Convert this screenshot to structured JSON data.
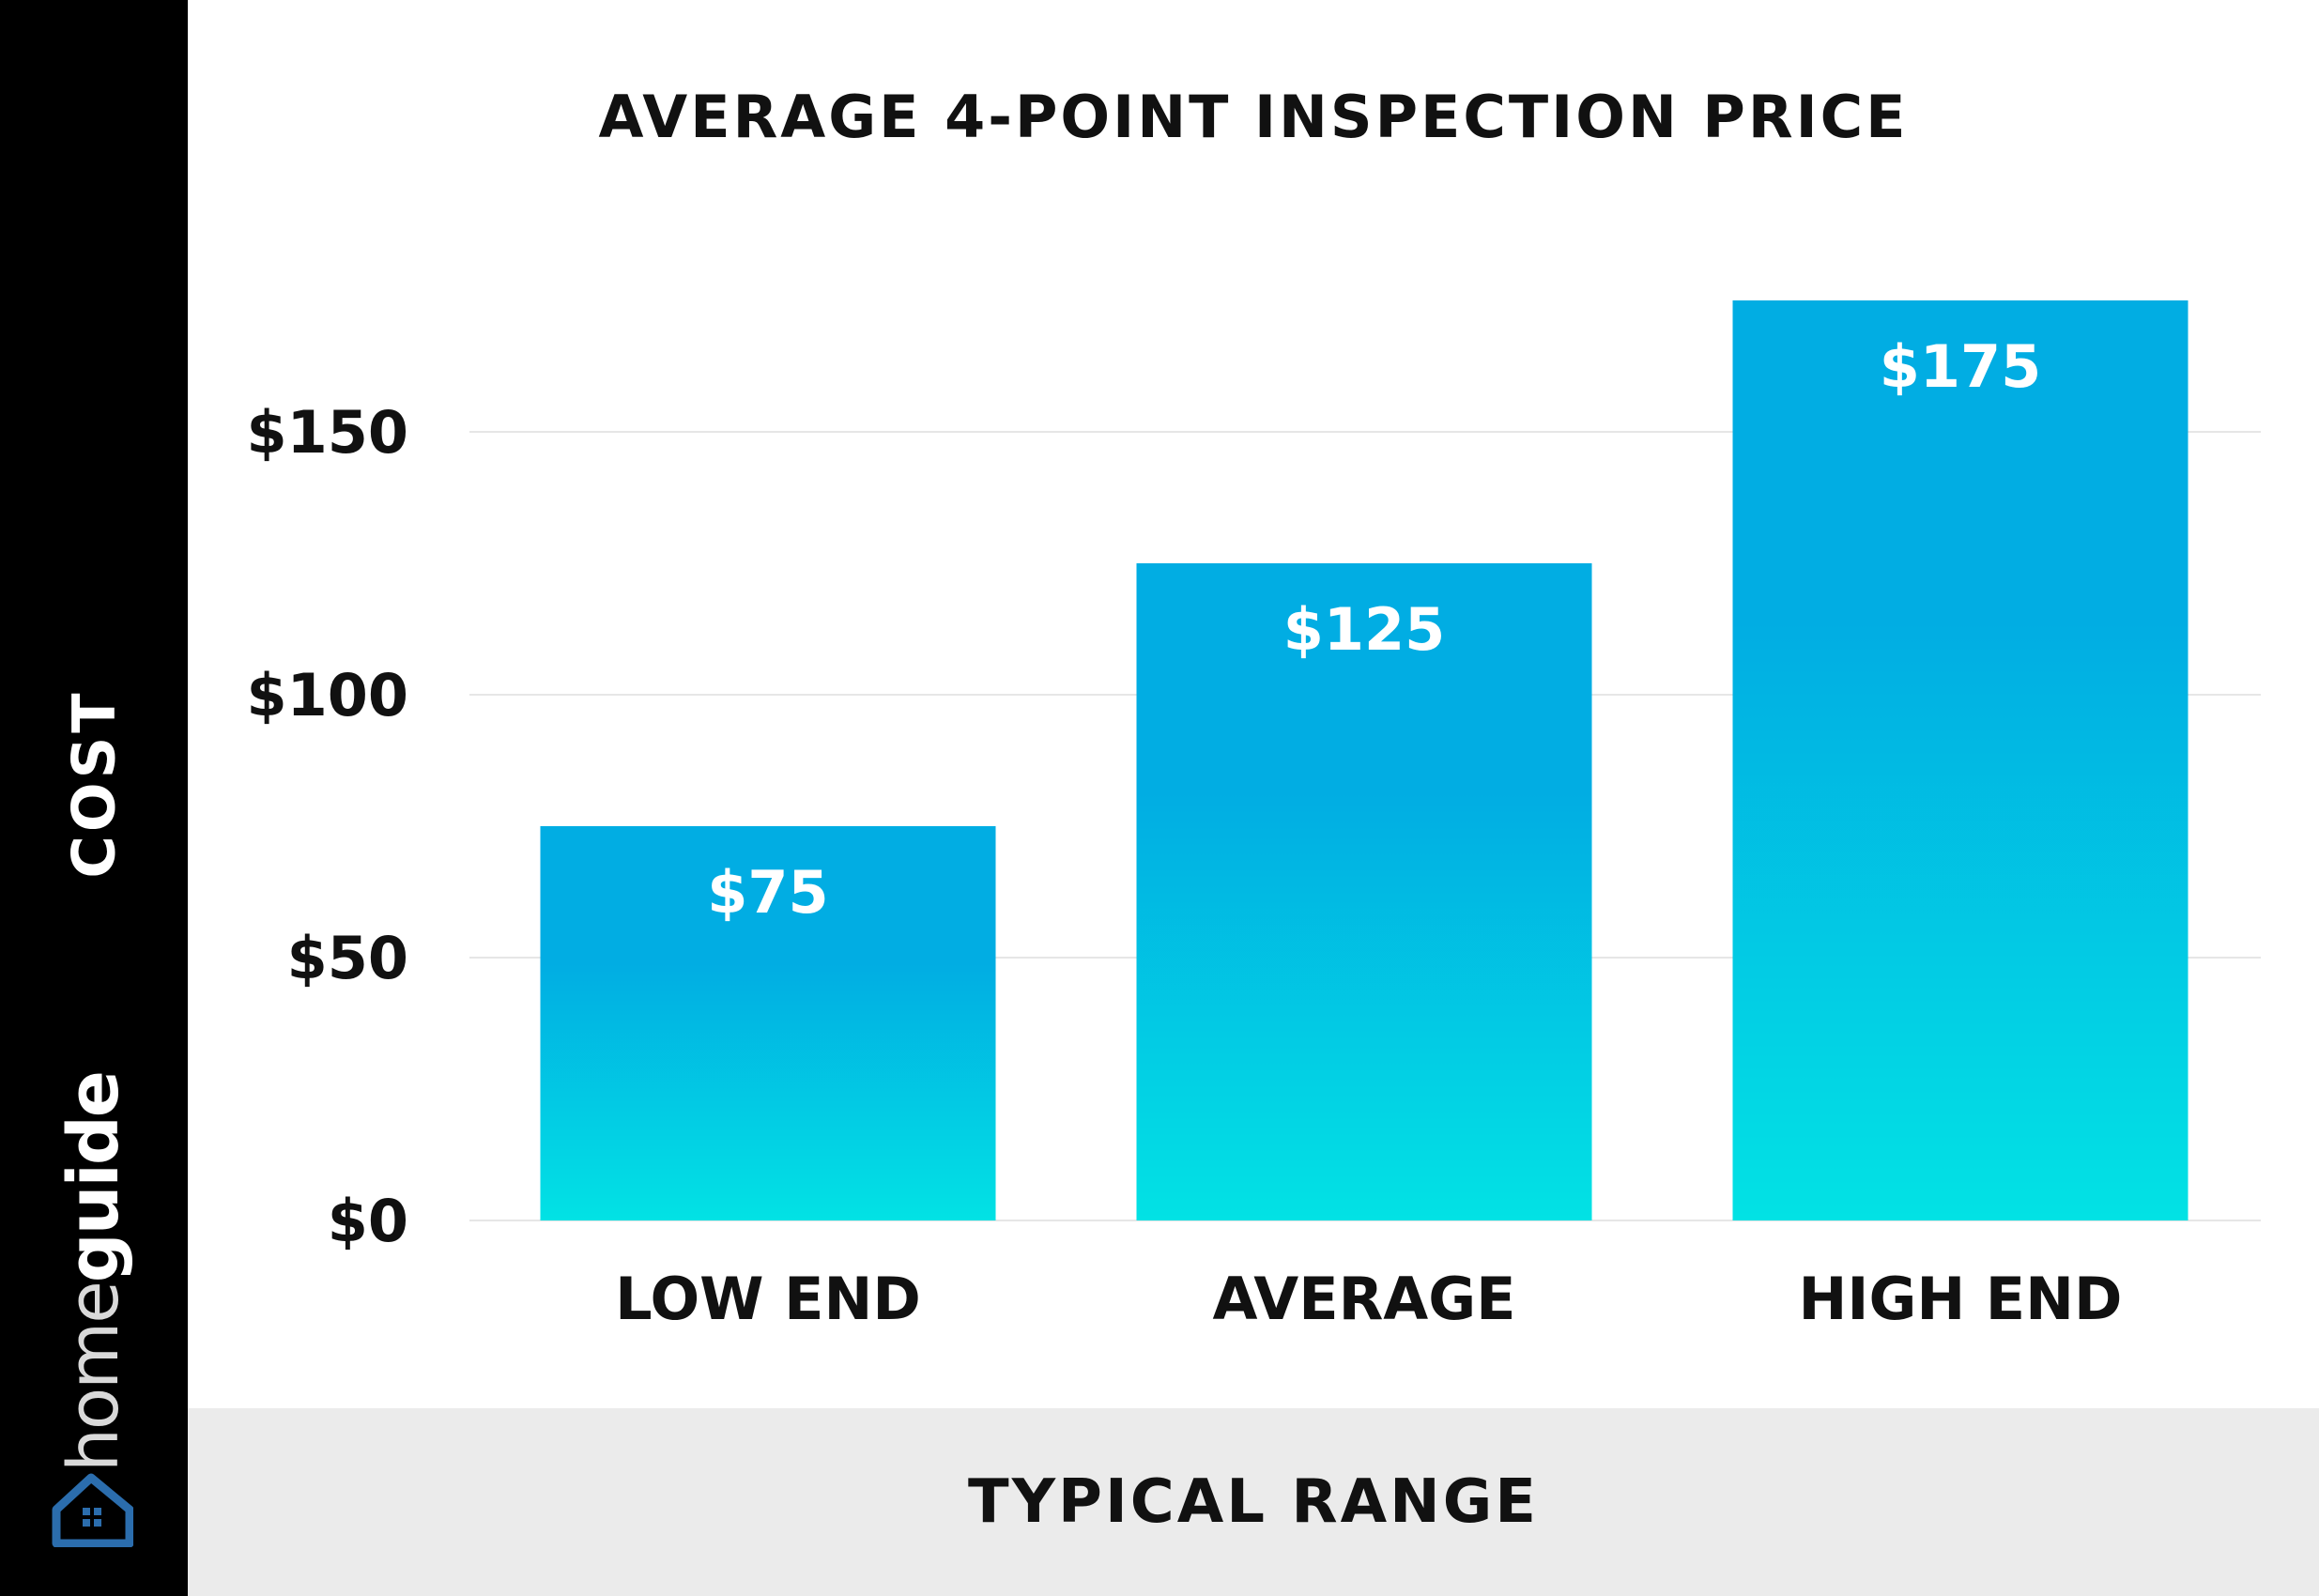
{
  "chart_data": {
    "type": "bar",
    "title": "AVERAGE 4-POINT INSPECTION PRICE",
    "xlabel": "TYPICAL RANGE",
    "ylabel": "COST",
    "categories": [
      "LOW END",
      "AVERAGE",
      "HIGH END"
    ],
    "values": [
      75,
      125,
      175
    ],
    "data_labels": [
      "$75",
      "$125",
      "$175"
    ],
    "ylim": [
      0,
      180
    ],
    "yticks": [
      0,
      50,
      100,
      150
    ],
    "ytick_labels": [
      "$0",
      "$50",
      "$100",
      "$150"
    ],
    "grid": true,
    "bar_color_top": "#01ade3",
    "bar_color_bottom": "#02e2e4"
  },
  "branding": {
    "name_part1": "home",
    "name_part2": "guide",
    "logo_icon": "house-icon"
  },
  "colors": {
    "sidebar": "#000000",
    "footer": "#ebebeb",
    "gridline": "#e6e6e6"
  }
}
